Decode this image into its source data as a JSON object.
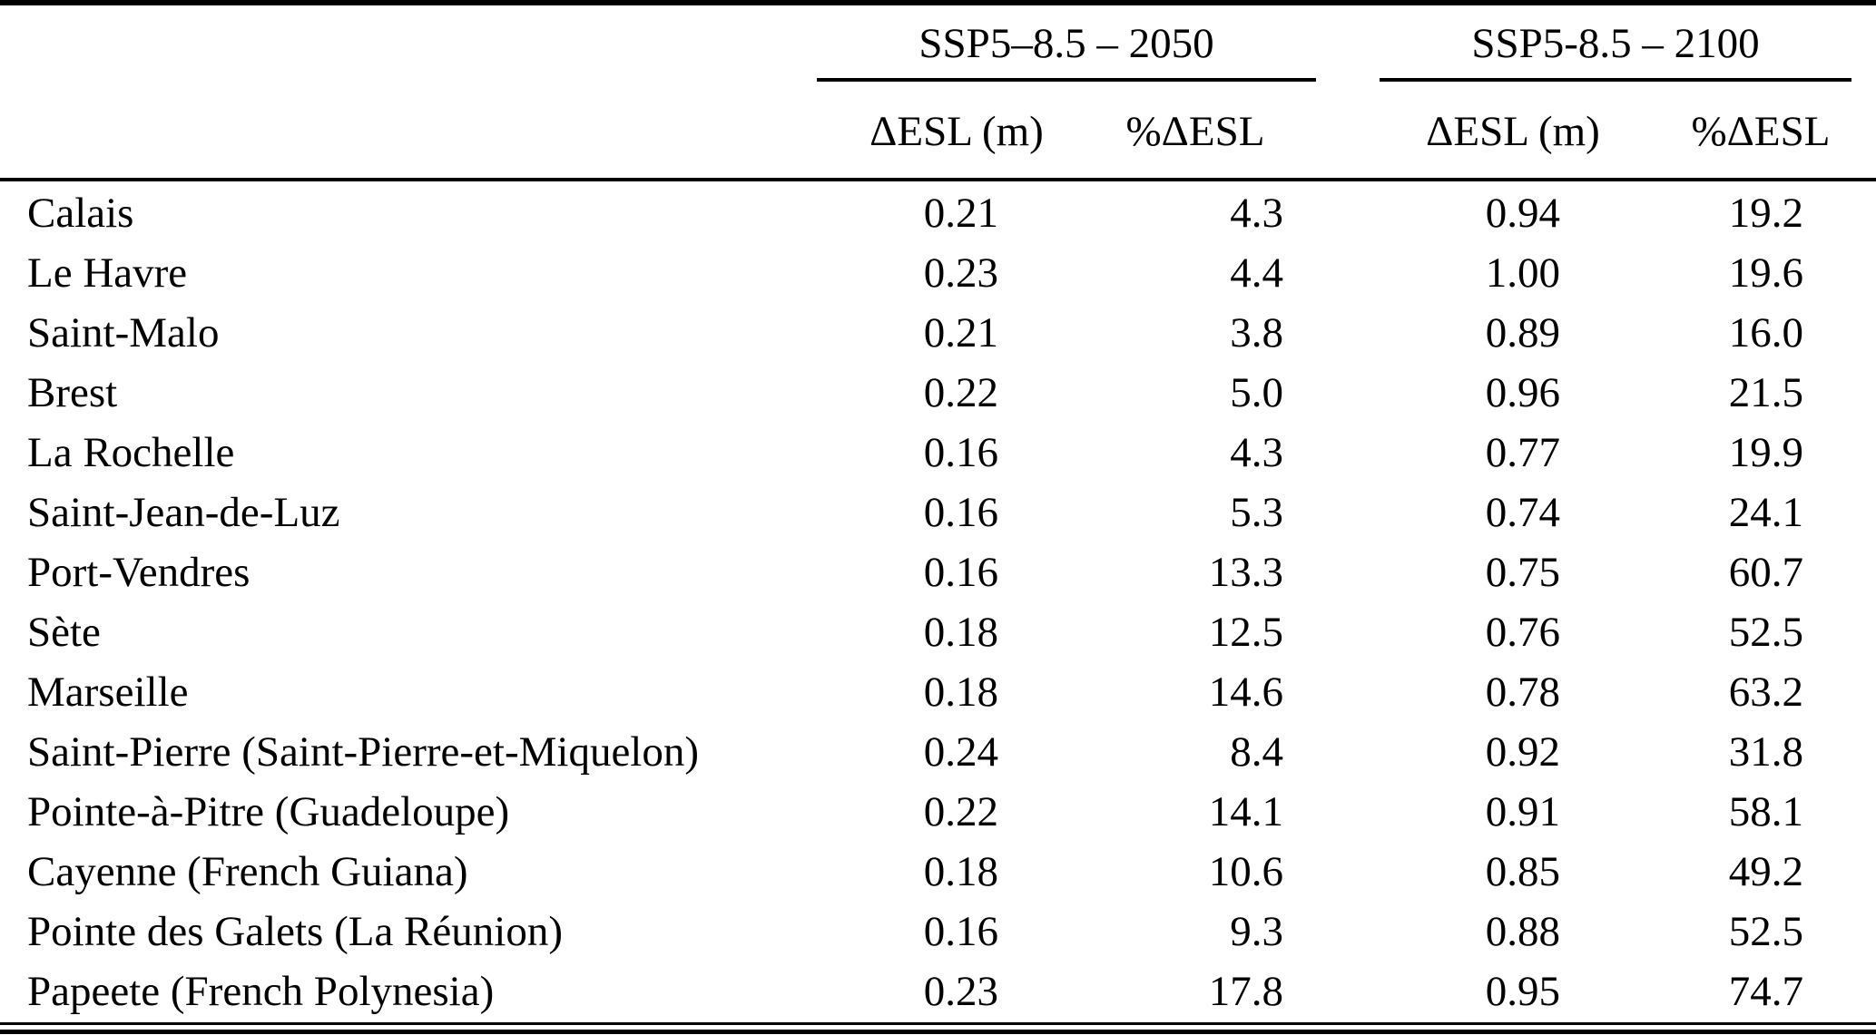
{
  "table": {
    "groups": [
      {
        "label": "SSP5–8.5 – 2050",
        "col_esl": "ΔESL (m)",
        "col_pct": "%ΔESL"
      },
      {
        "label": "SSP5-8.5 – 2100",
        "col_esl": "ΔESL (m)",
        "col_pct": "%ΔESL"
      }
    ],
    "rows": [
      {
        "location": "Calais",
        "esl_2050": "0.21",
        "pct_2050": "4.3",
        "esl_2100": "0.94",
        "pct_2100": "19.2"
      },
      {
        "location": "Le Havre",
        "esl_2050": "0.23",
        "pct_2050": "4.4",
        "esl_2100": "1.00",
        "pct_2100": "19.6"
      },
      {
        "location": "Saint-Malo",
        "esl_2050": "0.21",
        "pct_2050": "3.8",
        "esl_2100": "0.89",
        "pct_2100": "16.0"
      },
      {
        "location": "Brest",
        "esl_2050": "0.22",
        "pct_2050": "5.0",
        "esl_2100": "0.96",
        "pct_2100": "21.5"
      },
      {
        "location": "La Rochelle",
        "esl_2050": "0.16",
        "pct_2050": "4.3",
        "esl_2100": "0.77",
        "pct_2100": "19.9"
      },
      {
        "location": "Saint-Jean-de-Luz",
        "esl_2050": "0.16",
        "pct_2050": "5.3",
        "esl_2100": "0.74",
        "pct_2100": "24.1"
      },
      {
        "location": "Port-Vendres",
        "esl_2050": "0.16",
        "pct_2050": "13.3",
        "esl_2100": "0.75",
        "pct_2100": "60.7"
      },
      {
        "location": "Sète",
        "esl_2050": "0.18",
        "pct_2050": "12.5",
        "esl_2100": "0.76",
        "pct_2100": "52.5"
      },
      {
        "location": "Marseille",
        "esl_2050": "0.18",
        "pct_2050": "14.6",
        "esl_2100": "0.78",
        "pct_2100": "63.2"
      },
      {
        "location": "Saint-Pierre (Saint-Pierre-et-Miquelon)",
        "esl_2050": "0.24",
        "pct_2050": "8.4",
        "esl_2100": "0.92",
        "pct_2100": "31.8"
      },
      {
        "location": "Pointe-à-Pitre (Guadeloupe)",
        "esl_2050": "0.22",
        "pct_2050": "14.1",
        "esl_2100": "0.91",
        "pct_2100": "58.1"
      },
      {
        "location": "Cayenne (French Guiana)",
        "esl_2050": "0.18",
        "pct_2050": "10.6",
        "esl_2100": "0.85",
        "pct_2100": "49.2"
      },
      {
        "location": "Pointe des Galets (La Réunion)",
        "esl_2050": "0.16",
        "pct_2050": "9.3",
        "esl_2100": "0.88",
        "pct_2100": "52.5"
      },
      {
        "location": "Papeete (French Polynesia)",
        "esl_2050": "0.23",
        "pct_2050": "17.8",
        "esl_2100": "0.95",
        "pct_2100": "74.7"
      }
    ]
  },
  "chart_data": {
    "type": "table",
    "column_groups": [
      "SSP5–8.5 – 2050",
      "SSP5-8.5 – 2100"
    ],
    "columns": [
      "",
      "ΔESL (m)",
      "%ΔESL",
      "ΔESL (m)",
      "%ΔESL"
    ],
    "rows": [
      [
        "Calais",
        0.21,
        4.3,
        0.94,
        19.2
      ],
      [
        "Le Havre",
        0.23,
        4.4,
        1.0,
        19.6
      ],
      [
        "Saint-Malo",
        0.21,
        3.8,
        0.89,
        16.0
      ],
      [
        "Brest",
        0.22,
        5.0,
        0.96,
        21.5
      ],
      [
        "La Rochelle",
        0.16,
        4.3,
        0.77,
        19.9
      ],
      [
        "Saint-Jean-de-Luz",
        0.16,
        5.3,
        0.74,
        24.1
      ],
      [
        "Port-Vendres",
        0.16,
        13.3,
        0.75,
        60.7
      ],
      [
        "Sète",
        0.18,
        12.5,
        0.76,
        52.5
      ],
      [
        "Marseille",
        0.18,
        14.6,
        0.78,
        63.2
      ],
      [
        "Saint-Pierre (Saint-Pierre-et-Miquelon)",
        0.24,
        8.4,
        0.92,
        31.8
      ],
      [
        "Pointe-à-Pitre (Guadeloupe)",
        0.22,
        14.1,
        0.91,
        58.1
      ],
      [
        "Cayenne (French Guiana)",
        0.18,
        10.6,
        0.85,
        49.2
      ],
      [
        "Pointe des Galets (La Réunion)",
        0.16,
        9.3,
        0.88,
        52.5
      ],
      [
        "Papeete (French Polynesia)",
        0.23,
        17.8,
        0.95,
        74.7
      ]
    ]
  }
}
